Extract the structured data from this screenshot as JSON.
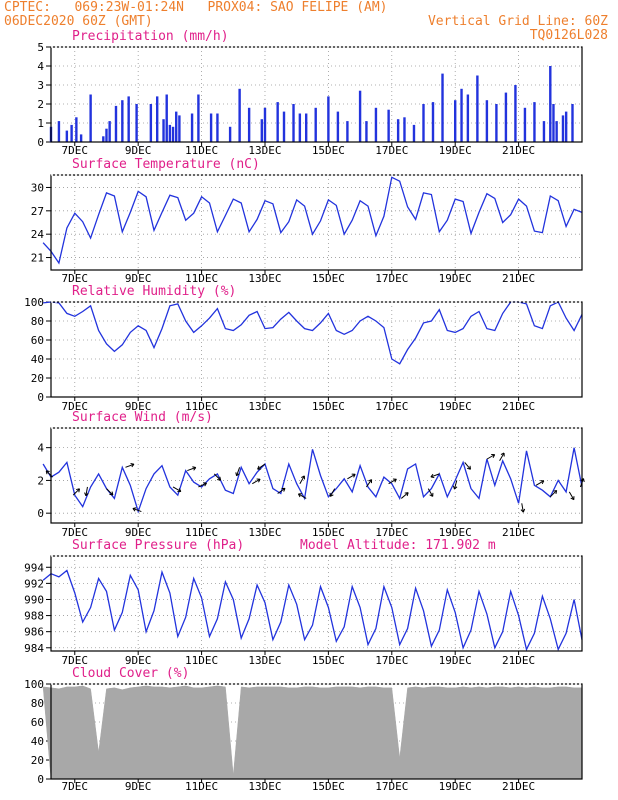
{
  "header": {
    "line1_left": "CPTEC:   069:23W-01:24N   PROX04: SAO FELIPE (AM)",
    "line2_left": "06DEC2020 60Z (GMT)",
    "line2_right": "Vertical Grid Line: 60Z",
    "line3_right": "TQ0126L028"
  },
  "colors": {
    "header": "#ee7f2d",
    "title": "#e0208a",
    "series": "#2233dd",
    "cloud": "#a8a8a8",
    "arrow": "#000000"
  },
  "date_labels": [
    "7DEC",
    "9DEC",
    "11DEC",
    "13DEC",
    "15DEC",
    "17DEC",
    "19DEC",
    "21DEC"
  ],
  "chart_data": [
    {
      "id": "precip",
      "type": "bar",
      "title": "Precipitation (mm/h)",
      "ylim": [
        0,
        5
      ],
      "yticks": [
        0,
        1,
        2,
        3,
        4,
        5
      ],
      "x_unit": "days since 06DEC2020 00Z",
      "x": [
        0.25,
        0.5,
        0.75,
        0.9,
        1.05,
        1.2,
        1.5,
        1.9,
        2.0,
        2.1,
        2.3,
        2.5,
        2.7,
        2.95,
        3.4,
        3.6,
        3.8,
        3.9,
        4.0,
        4.1,
        4.2,
        4.3,
        4.7,
        4.9,
        5.3,
        5.5,
        5.9,
        6.2,
        6.5,
        6.9,
        7.0,
        7.4,
        7.6,
        7.9,
        8.1,
        8.3,
        8.6,
        9.0,
        9.3,
        9.6,
        10.0,
        10.2,
        10.5,
        10.9,
        11.2,
        11.4,
        11.7,
        12.0,
        12.3,
        12.6,
        13.0,
        13.2,
        13.4,
        13.7,
        14.0,
        14.3,
        14.6,
        14.9,
        15.2,
        15.5,
        15.8,
        16.0,
        16.1,
        16.2,
        16.4,
        16.5,
        16.7
      ],
      "values": [
        0.8,
        1.1,
        0.6,
        0.9,
        1.3,
        0.4,
        2.5,
        0.3,
        0.7,
        1.1,
        1.9,
        2.2,
        2.4,
        2.0,
        2.0,
        2.4,
        1.2,
        2.5,
        0.9,
        0.8,
        1.6,
        1.4,
        1.5,
        2.5,
        1.5,
        1.5,
        0.8,
        2.8,
        1.8,
        1.2,
        1.8,
        2.1,
        1.6,
        2.0,
        1.5,
        1.5,
        1.8,
        2.4,
        1.6,
        1.1,
        2.7,
        1.1,
        1.8,
        1.7,
        1.2,
        1.3,
        0.9,
        2.0,
        2.1,
        3.6,
        2.2,
        2.8,
        2.5,
        3.5,
        2.2,
        2.0,
        2.6,
        3.0,
        1.8,
        2.1,
        1.1,
        4.0,
        2.0,
        1.1,
        1.4,
        1.6,
        2.0
      ]
    },
    {
      "id": "temp",
      "type": "line",
      "title": "Surface Temperature (nC)",
      "ylim": [
        19.4,
        31.6
      ],
      "yticks": [
        21,
        24,
        27,
        30
      ],
      "x_unit": "days since 06DEC2020 00Z",
      "x": [
        0.0,
        0.25,
        0.5,
        0.75,
        1.0,
        1.25,
        1.5,
        1.75,
        2.0,
        2.25,
        2.5,
        2.75,
        3.0,
        3.25,
        3.5,
        3.75,
        4.0,
        4.25,
        4.5,
        4.75,
        5.0,
        5.25,
        5.5,
        5.75,
        6.0,
        6.25,
        6.5,
        6.75,
        7.0,
        7.25,
        7.5,
        7.75,
        8.0,
        8.25,
        8.5,
        8.75,
        9.0,
        9.25,
        9.5,
        9.75,
        10.0,
        10.25,
        10.5,
        10.75,
        11.0,
        11.25,
        11.5,
        11.75,
        12.0,
        12.25,
        12.5,
        12.75,
        13.0,
        13.25,
        13.5,
        13.75,
        14.0,
        14.25,
        14.5,
        14.75,
        15.0,
        15.25,
        15.5,
        15.75,
        16.0,
        16.25,
        16.5,
        16.75,
        17.0
      ],
      "values": [
        22.9,
        21.8,
        20.3,
        24.8,
        26.7,
        25.6,
        23.5,
        26.5,
        29.3,
        28.9,
        24.3,
        26.8,
        29.5,
        28.8,
        24.5,
        26.8,
        29.0,
        28.7,
        25.8,
        26.7,
        28.8,
        28.0,
        24.3,
        26.4,
        28.5,
        28.0,
        24.3,
        25.9,
        28.3,
        27.9,
        24.2,
        25.6,
        28.4,
        27.6,
        24.0,
        25.7,
        28.4,
        27.7,
        24.0,
        25.8,
        28.3,
        27.6,
        23.8,
        26.3,
        31.3,
        30.8,
        27.5,
        25.9,
        29.3,
        29.1,
        24.3,
        25.8,
        28.5,
        28.2,
        24.1,
        26.8,
        29.2,
        28.6,
        25.5,
        26.5,
        28.5,
        27.6,
        24.4,
        24.2,
        28.9,
        28.3,
        25.0,
        27.2,
        26.8
      ]
    },
    {
      "id": "rh",
      "type": "line",
      "title": "Relative Humidity (%)",
      "ylim": [
        0,
        100
      ],
      "yticks": [
        0,
        20,
        40,
        60,
        80,
        100
      ],
      "x_unit": "days since 06DEC2020 00Z",
      "x": [
        0.0,
        0.25,
        0.5,
        0.75,
        1.0,
        1.25,
        1.5,
        1.75,
        2.0,
        2.25,
        2.5,
        2.75,
        3.0,
        3.25,
        3.5,
        3.75,
        4.0,
        4.25,
        4.5,
        4.75,
        5.0,
        5.25,
        5.5,
        5.75,
        6.0,
        6.25,
        6.5,
        6.75,
        7.0,
        7.25,
        7.5,
        7.75,
        8.0,
        8.25,
        8.5,
        8.75,
        9.0,
        9.25,
        9.5,
        9.75,
        10.0,
        10.25,
        10.5,
        10.75,
        11.0,
        11.25,
        11.5,
        11.75,
        12.0,
        12.25,
        12.5,
        12.75,
        13.0,
        13.25,
        13.5,
        13.75,
        14.0,
        14.25,
        14.5,
        14.75,
        15.0,
        15.25,
        15.5,
        15.75,
        16.0,
        16.25,
        16.5,
        16.75,
        17.0
      ],
      "values": [
        99,
        100,
        99,
        88,
        85,
        90,
        96,
        70,
        56,
        48,
        55,
        68,
        75,
        70,
        52,
        72,
        96,
        98,
        80,
        68,
        75,
        83,
        93,
        72,
        70,
        76,
        86,
        90,
        72,
        73,
        82,
        89,
        80,
        72,
        70,
        78,
        88,
        70,
        66,
        70,
        80,
        85,
        80,
        73,
        40,
        35,
        50,
        62,
        78,
        80,
        92,
        70,
        68,
        72,
        85,
        90,
        72,
        70,
        88,
        100,
        100,
        98,
        75,
        72,
        96,
        100,
        83,
        70,
        87
      ]
    },
    {
      "id": "wind",
      "type": "line",
      "title": "Surface Wind (m/s)",
      "ylim": [
        -0.6,
        5.2
      ],
      "yticks": [
        0,
        2,
        4
      ],
      "x_unit": "days since 06DEC2020 00Z",
      "x": [
        0.0,
        0.25,
        0.5,
        0.75,
        1.0,
        1.25,
        1.5,
        1.75,
        2.0,
        2.25,
        2.5,
        2.75,
        3.0,
        3.25,
        3.5,
        3.75,
        4.0,
        4.25,
        4.5,
        4.75,
        5.0,
        5.25,
        5.5,
        5.75,
        6.0,
        6.25,
        6.5,
        6.75,
        7.0,
        7.25,
        7.5,
        7.75,
        8.0,
        8.25,
        8.5,
        8.75,
        9.0,
        9.25,
        9.5,
        9.75,
        10.0,
        10.25,
        10.5,
        10.75,
        11.0,
        11.25,
        11.5,
        11.75,
        12.0,
        12.25,
        12.5,
        12.75,
        13.0,
        13.25,
        13.5,
        13.75,
        14.0,
        14.25,
        14.5,
        14.75,
        15.0,
        15.25,
        15.5,
        15.75,
        16.0,
        16.25,
        16.5,
        16.75,
        17.0
      ],
      "values": [
        3.0,
        2.2,
        2.5,
        3.1,
        1.1,
        0.4,
        1.6,
        2.4,
        1.5,
        0.9,
        2.8,
        1.7,
        0.1,
        1.5,
        2.4,
        2.9,
        1.6,
        1.1,
        2.6,
        1.9,
        1.6,
        2.1,
        2.4,
        1.4,
        1.2,
        2.8,
        1.8,
        2.5,
        3.0,
        1.5,
        1.2,
        3.0,
        1.8,
        0.9,
        3.9,
        2.3,
        1.0,
        1.5,
        2.1,
        1.3,
        2.9,
        1.6,
        1.0,
        2.2,
        1.8,
        0.9,
        2.7,
        3.0,
        1.0,
        1.5,
        2.4,
        1.0,
        2.0,
        3.1,
        1.5,
        0.9,
        3.3,
        1.7,
        3.2,
        2.1,
        0.6,
        3.8,
        1.7,
        1.4,
        1.0,
        2.0,
        1.3,
        4.0,
        1.6
      ],
      "vectors": [
        {
          "x": 0.3,
          "dir_deg": 135
        },
        {
          "x": 0.95,
          "dir_deg": 45
        },
        {
          "x": 1.4,
          "dir_deg": 260
        },
        {
          "x": 2.0,
          "dir_deg": 315
        },
        {
          "x": 2.6,
          "dir_deg": 20
        },
        {
          "x": 3.1,
          "dir_deg": 160
        },
        {
          "x": 4.1,
          "dir_deg": 330
        },
        {
          "x": 4.55,
          "dir_deg": 20
        },
        {
          "x": 4.9,
          "dir_deg": 25
        },
        {
          "x": 5.4,
          "dir_deg": 315
        },
        {
          "x": 6.2,
          "dir_deg": 250
        },
        {
          "x": 6.6,
          "dir_deg": 30
        },
        {
          "x": 7.0,
          "dir_deg": 215
        },
        {
          "x": 7.4,
          "dir_deg": 35
        },
        {
          "x": 8.1,
          "dir_deg": 60
        },
        {
          "x": 8.3,
          "dir_deg": 150
        },
        {
          "x": 9.2,
          "dir_deg": 240
        },
        {
          "x": 9.6,
          "dir_deg": 30
        },
        {
          "x": 10.2,
          "dir_deg": 55
        },
        {
          "x": 10.9,
          "dir_deg": 30
        },
        {
          "x": 11.3,
          "dir_deg": 40
        },
        {
          "x": 12.15,
          "dir_deg": 300
        },
        {
          "x": 12.5,
          "dir_deg": 200
        },
        {
          "x": 13.05,
          "dir_deg": 255
        },
        {
          "x": 13.3,
          "dir_deg": 310
        },
        {
          "x": 14.0,
          "dir_deg": 30
        },
        {
          "x": 14.4,
          "dir_deg": 60
        },
        {
          "x": 15.1,
          "dir_deg": 280
        },
        {
          "x": 15.55,
          "dir_deg": 30
        },
        {
          "x": 16.0,
          "dir_deg": 45
        },
        {
          "x": 16.6,
          "dir_deg": 300
        },
        {
          "x": 16.95,
          "dir_deg": 70
        }
      ]
    },
    {
      "id": "pressure",
      "type": "line",
      "title": "Surface Pressure (hPa)",
      "annotation": "Model Altitude: 171.902 m",
      "ylim": [
        983.6,
        995.4
      ],
      "yticks": [
        984,
        986,
        988,
        990,
        992,
        994
      ],
      "x_unit": "days since 06DEC2020 00Z",
      "x": [
        0.0,
        0.25,
        0.5,
        0.75,
        1.0,
        1.25,
        1.5,
        1.75,
        2.0,
        2.25,
        2.5,
        2.75,
        3.0,
        3.25,
        3.5,
        3.75,
        4.0,
        4.25,
        4.5,
        4.75,
        5.0,
        5.25,
        5.5,
        5.75,
        6.0,
        6.25,
        6.5,
        6.75,
        7.0,
        7.25,
        7.5,
        7.75,
        8.0,
        8.25,
        8.5,
        8.75,
        9.0,
        9.25,
        9.5,
        9.75,
        10.0,
        10.25,
        10.5,
        10.75,
        11.0,
        11.25,
        11.5,
        11.75,
        12.0,
        12.25,
        12.5,
        12.75,
        13.0,
        13.25,
        13.5,
        13.75,
        14.0,
        14.25,
        14.5,
        14.75,
        15.0,
        15.25,
        15.5,
        15.75,
        16.0,
        16.25,
        16.5,
        16.75,
        17.0
      ],
      "values": [
        992.4,
        993.2,
        992.8,
        993.6,
        990.8,
        987.2,
        989.0,
        992.6,
        991.0,
        986.2,
        988.4,
        993.0,
        991.2,
        986.0,
        988.6,
        993.4,
        990.8,
        985.4,
        987.8,
        992.6,
        990.2,
        985.4,
        987.6,
        992.2,
        990.0,
        985.2,
        987.6,
        991.8,
        989.6,
        985.0,
        987.2,
        991.8,
        989.4,
        985.0,
        986.8,
        991.6,
        989.0,
        984.8,
        986.6,
        991.6,
        989.0,
        984.4,
        986.4,
        991.6,
        989.0,
        984.4,
        986.4,
        991.4,
        988.6,
        984.2,
        986.2,
        991.2,
        988.4,
        984.0,
        986.2,
        991.0,
        988.2,
        984.0,
        986.0,
        991.0,
        988.0,
        983.8,
        985.8,
        990.4,
        987.6,
        983.8,
        985.8,
        990.0,
        985.0
      ]
    },
    {
      "id": "cloud",
      "type": "area",
      "title": "Cloud Cover (%)",
      "ylim": [
        0,
        100
      ],
      "yticks": [
        0,
        20,
        40,
        60,
        80,
        100
      ],
      "x_unit": "days since 06DEC2020 00Z",
      "x": [
        0.0,
        0.25,
        0.5,
        0.75,
        1.0,
        1.25,
        1.5,
        1.75,
        2.0,
        2.25,
        2.5,
        2.75,
        3.0,
        3.25,
        3.5,
        3.75,
        4.0,
        4.25,
        4.5,
        4.75,
        5.0,
        5.25,
        5.5,
        5.75,
        6.0,
        6.25,
        6.5,
        6.75,
        7.0,
        7.25,
        7.5,
        7.75,
        8.0,
        8.25,
        8.5,
        8.75,
        9.0,
        9.25,
        9.5,
        9.75,
        10.0,
        10.25,
        10.5,
        10.75,
        11.0,
        11.25,
        11.5,
        11.75,
        12.0,
        12.25,
        12.5,
        12.75,
        13.0,
        13.25,
        13.5,
        13.75,
        14.0,
        14.25,
        14.5,
        14.75,
        15.0,
        15.25,
        15.5,
        15.75,
        16.0,
        16.25,
        16.5,
        16.75,
        17.0
      ],
      "values": [
        97,
        96,
        95,
        97,
        97,
        98,
        95,
        28,
        95,
        96,
        94,
        96,
        97,
        98,
        97,
        97,
        96,
        97,
        98,
        96,
        96,
        97,
        98,
        97,
        4,
        97,
        96,
        97,
        97,
        97,
        97,
        96,
        96,
        97,
        97,
        96,
        96,
        97,
        97,
        97,
        96,
        97,
        97,
        96,
        96,
        22,
        96,
        97,
        96,
        97,
        97,
        96,
        96,
        97,
        96,
        97,
        96,
        97,
        97,
        96,
        97,
        96,
        97,
        96,
        96,
        97,
        97,
        96,
        96
      ]
    }
  ]
}
